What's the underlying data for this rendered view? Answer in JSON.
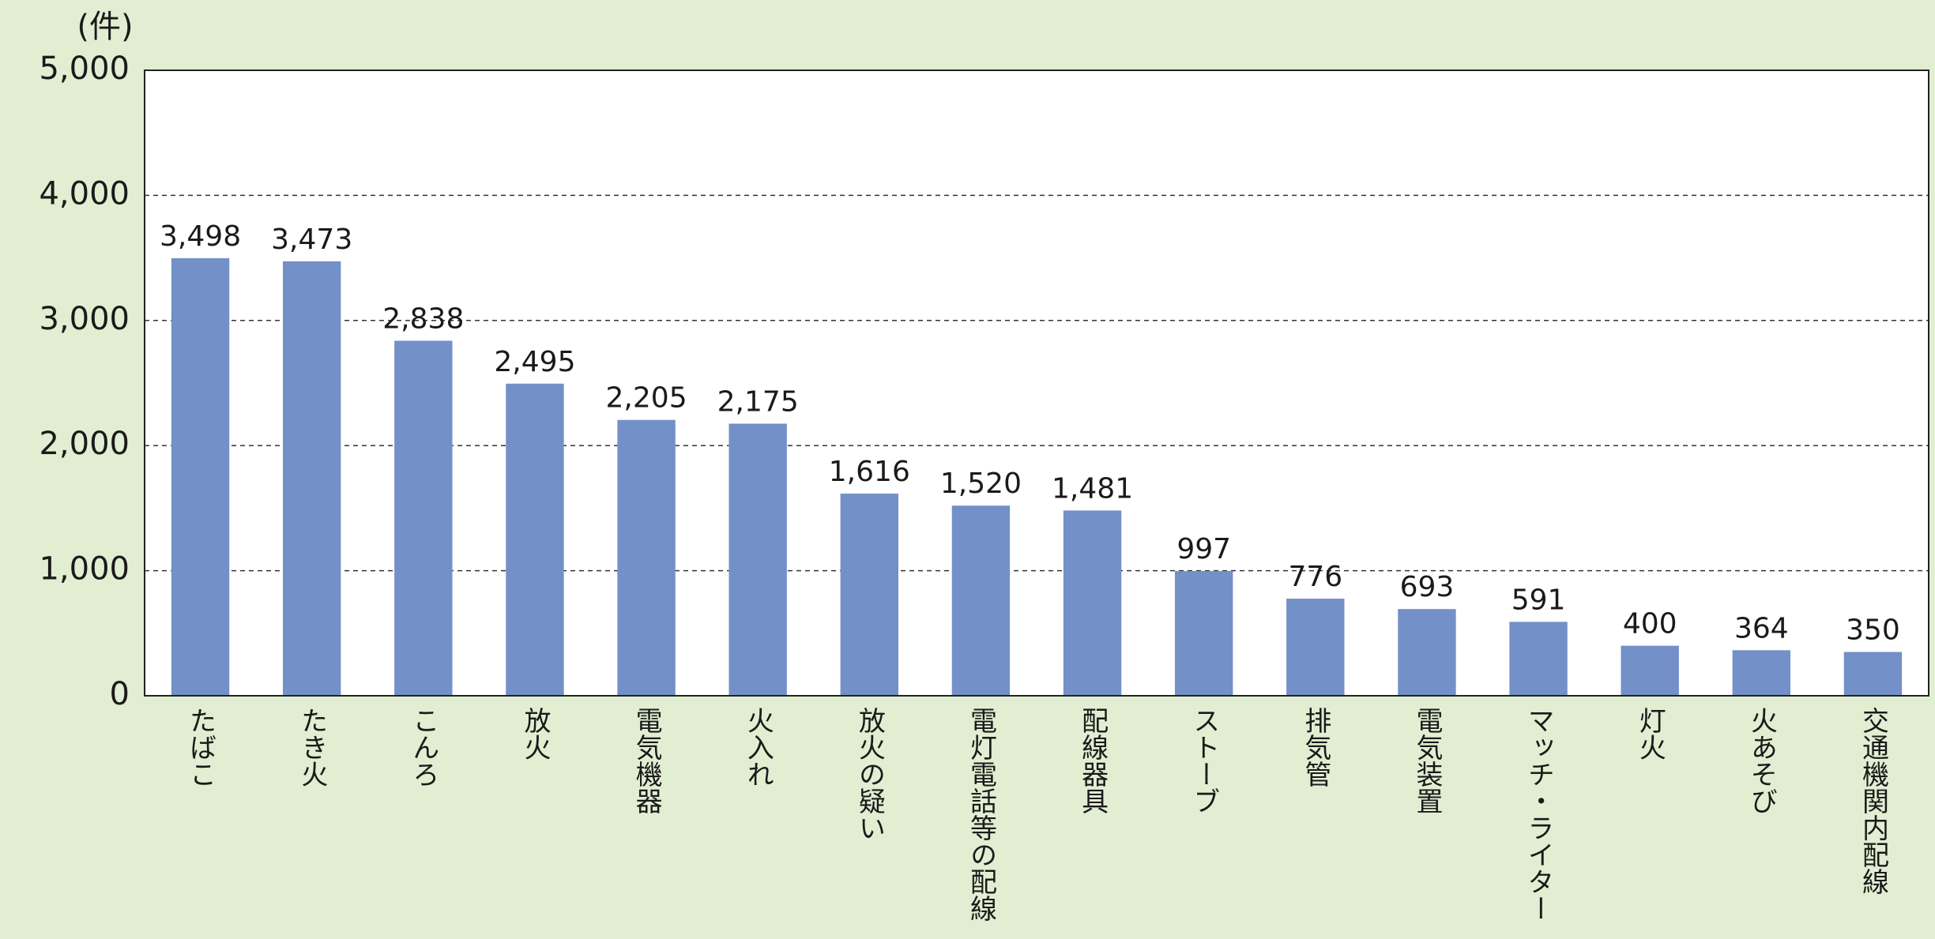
{
  "chart_data": {
    "type": "bar",
    "unit_label": "(件)",
    "categories": [
      "たばこ",
      "たき火",
      "こんろ",
      "放火",
      "電気機器",
      "火入れ",
      "放火の疑い",
      "電灯電話等の配線",
      "配線器具",
      "ストーブ",
      "排気管",
      "電気装置",
      "マッチ・ライター",
      "灯火",
      "火あそび",
      "交通機関内配線"
    ],
    "values": [
      3498,
      3473,
      2838,
      2495,
      2205,
      2175,
      1616,
      1520,
      1481,
      997,
      776,
      693,
      591,
      400,
      364,
      350
    ],
    "value_labels": [
      "3,498",
      "3,473",
      "2,838",
      "2,495",
      "2,205",
      "2,175",
      "1,616",
      "1,520",
      "1,481",
      "997",
      "776",
      "693",
      "591",
      "400",
      "364",
      "350"
    ],
    "color": "#7390c8",
    "ylim": [
      0,
      5000
    ],
    "yticks": [
      0,
      {
        "value": 1000,
        "label": "1,000"
      },
      {
        "value": 2000,
        "label": "2,000"
      },
      {
        "value": 3000,
        "label": "3,000"
      },
      {
        "value": 4000,
        "label": "4,000"
      },
      {
        "value": 5000,
        "label": "5,000"
      }
    ],
    "grid": true
  }
}
